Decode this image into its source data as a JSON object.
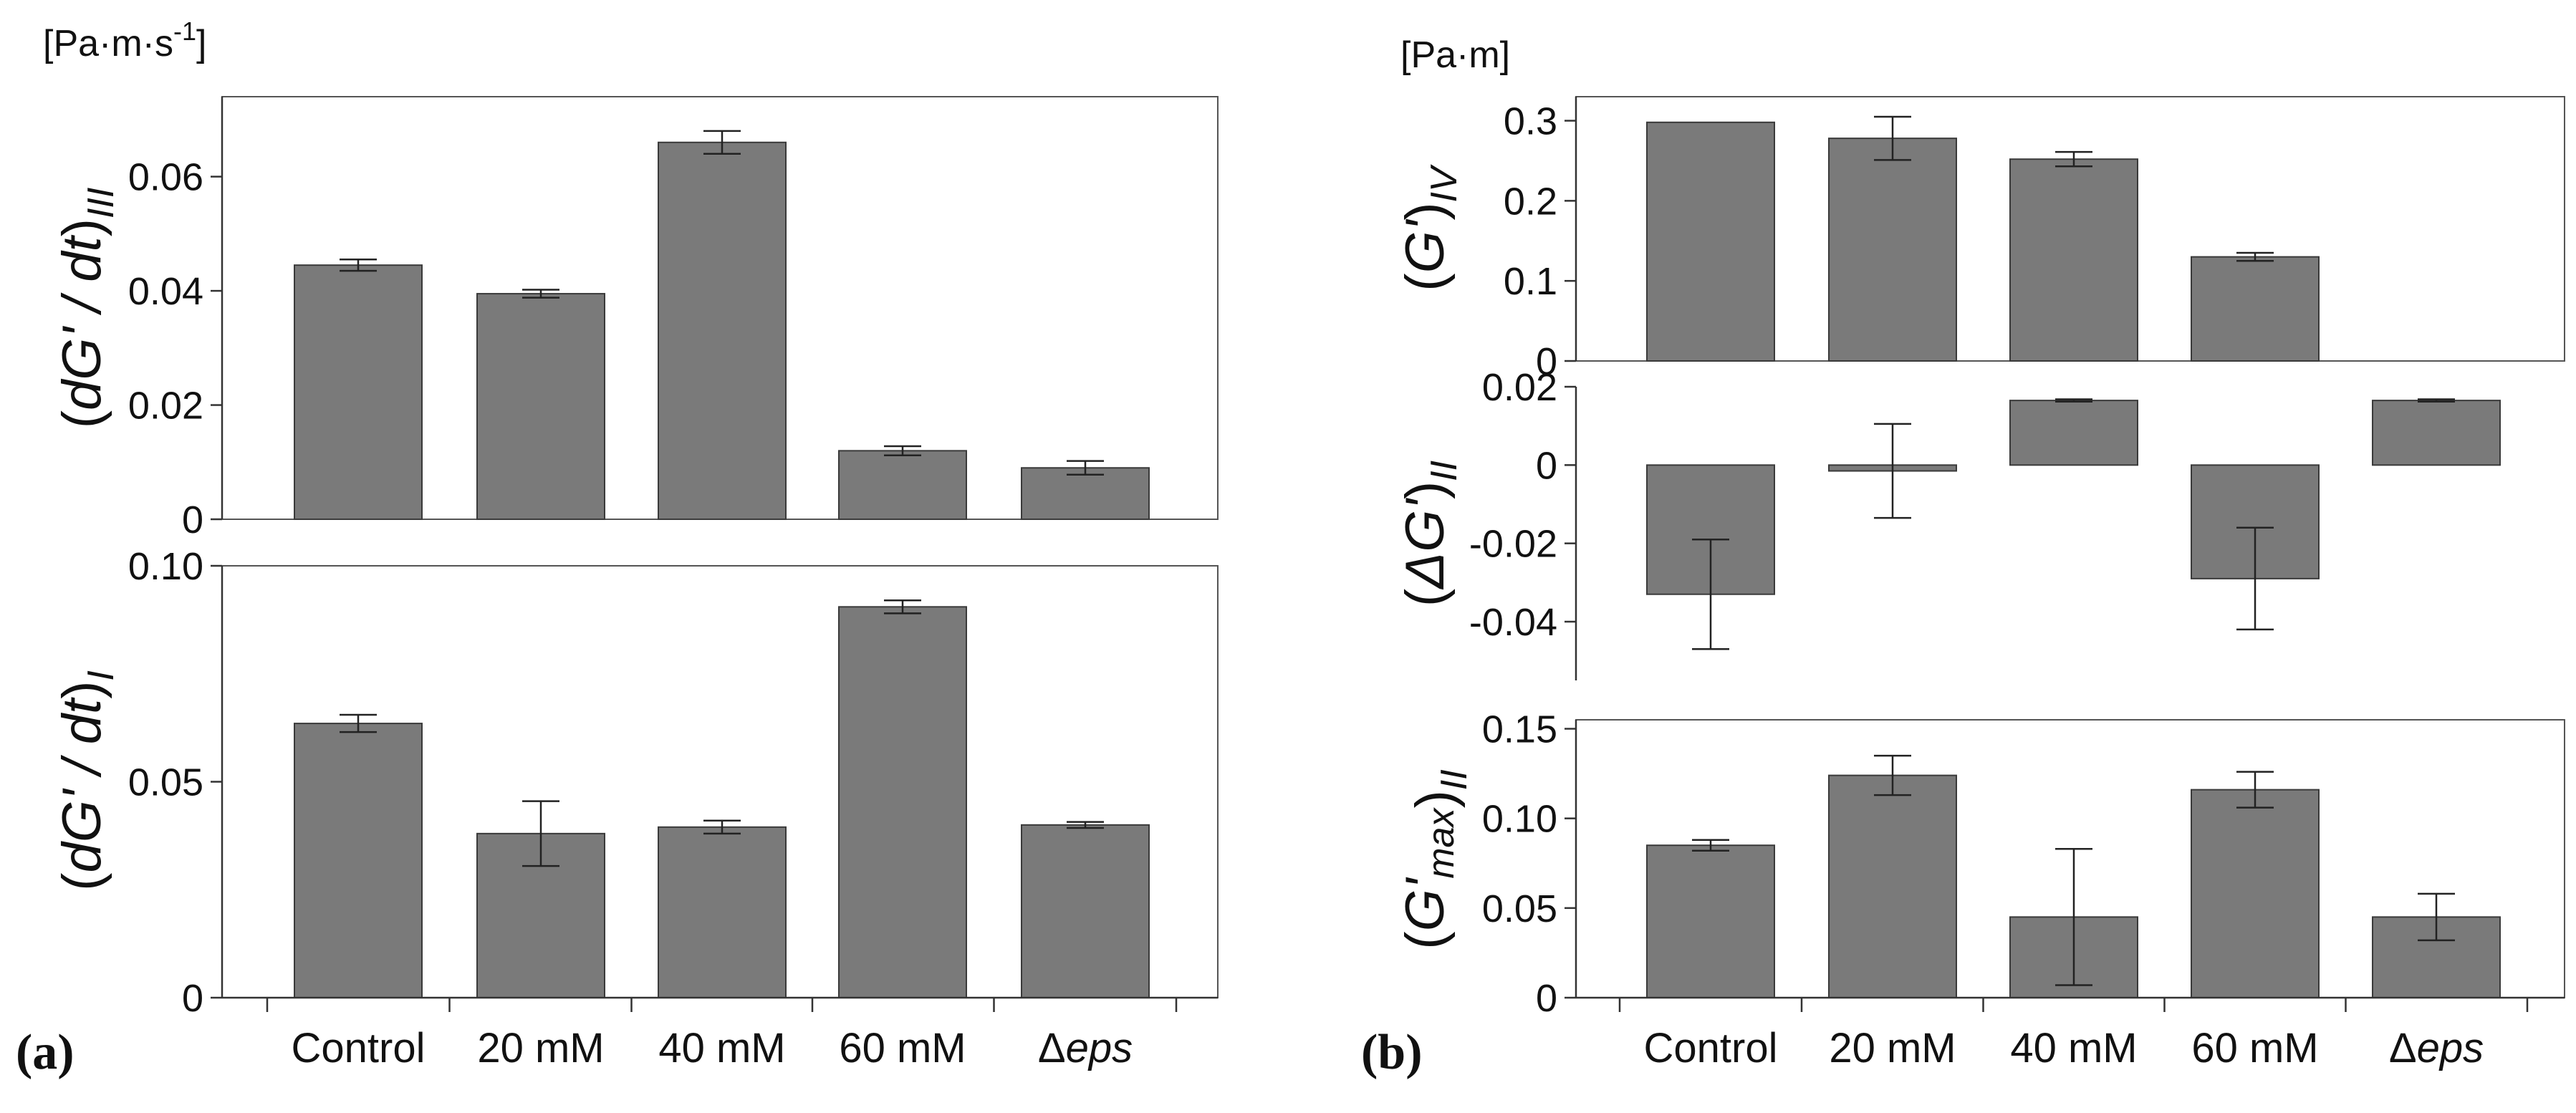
{
  "figure": {
    "label_a": "(a)",
    "label_b": "(b)",
    "unit_a": "[Pa·m·s",
    "unit_a_sup": "-1",
    "unit_a_end": "]",
    "unit_b": "[Pa·m]"
  },
  "chart_data": [
    {
      "id": "a-top",
      "type": "bar",
      "ylabel": {
        "open": "(",
        "main": "dG' / dt",
        "close": ")",
        "sub": "III"
      },
      "categories": [
        "Control",
        "20 mM",
        "40 mM",
        "60 mM",
        "Δeps"
      ],
      "values": [
        0.0445,
        0.0395,
        0.066,
        0.012,
        0.009
      ],
      "errors": [
        0.001,
        0.0007,
        0.002,
        0.0008,
        0.0012
      ],
      "ylim": [
        0,
        0.074
      ],
      "yticks": [
        0,
        0.02,
        0.04,
        0.06
      ],
      "ytick_labels": [
        "0",
        "0.02",
        "0.04",
        "0.06"
      ],
      "grid": false
    },
    {
      "id": "a-bottom",
      "type": "bar",
      "ylabel": {
        "open": "(",
        "main": "dG' / dt",
        "close": ")",
        "sub": "I"
      },
      "categories": [
        "Control",
        "20 mM",
        "40 mM",
        "60 mM",
        "Δeps"
      ],
      "values": [
        0.0635,
        0.038,
        0.0395,
        0.0905,
        0.04
      ],
      "errors": [
        0.002,
        0.0075,
        0.0015,
        0.0015,
        0.0007
      ],
      "ylim": [
        0,
        0.1
      ],
      "yticks": [
        0,
        0.05,
        0.1
      ],
      "ytick_labels": [
        "0",
        "0.05",
        "0.10"
      ],
      "grid": false
    },
    {
      "id": "b-top",
      "type": "bar",
      "ylabel": {
        "open": "(",
        "main": "G'",
        "close": ")",
        "sub": "IV"
      },
      "categories": [
        "Control",
        "20 mM",
        "40 mM",
        "60 mM",
        "Δeps"
      ],
      "values": [
        0.298,
        0.278,
        0.252,
        0.13,
        null
      ],
      "errors": [
        0,
        0.027,
        0.009,
        0.005,
        null
      ],
      "ylim": [
        0,
        0.33
      ],
      "yticks": [
        0,
        0.1,
        0.2,
        0.3
      ],
      "ytick_labels": [
        "0",
        "0.1",
        "0.2",
        "0.3"
      ],
      "grid": false
    },
    {
      "id": "b-middle",
      "type": "bar",
      "ylabel": {
        "open": "(",
        "main": "ΔG'",
        "close": ")",
        "sub": "II"
      },
      "categories": [
        "Control",
        "20 mM",
        "40 mM",
        "60 mM",
        "Δeps"
      ],
      "values": [
        -0.033,
        -0.0015,
        0.0165,
        -0.029,
        0.0165
      ],
      "errors": [
        0.014,
        0.012,
        0.0003,
        0.013,
        0.0003
      ],
      "ylim": [
        -0.055,
        0.02
      ],
      "yticks": [
        -0.04,
        -0.02,
        0,
        0.02
      ],
      "ytick_labels": [
        "-0.04",
        "-0.02",
        "0",
        "0.02"
      ],
      "grid": false
    },
    {
      "id": "b-bottom",
      "type": "bar",
      "ylabel": {
        "open": "(",
        "main": "G'",
        "mainsub": "max",
        "close": ")",
        "sub": "II"
      },
      "categories": [
        "Control",
        "20 mM",
        "40 mM",
        "60 mM",
        "Δeps"
      ],
      "values": [
        0.085,
        0.124,
        0.045,
        0.116,
        0.045
      ],
      "errors": [
        0.003,
        0.011,
        0.038,
        0.01,
        0.013
      ],
      "ylim": [
        0,
        0.155
      ],
      "yticks": [
        0,
        0.05,
        0.1,
        0.15
      ],
      "ytick_labels": [
        "0",
        "0.05",
        "0.10",
        "0.15"
      ],
      "grid": false
    }
  ]
}
